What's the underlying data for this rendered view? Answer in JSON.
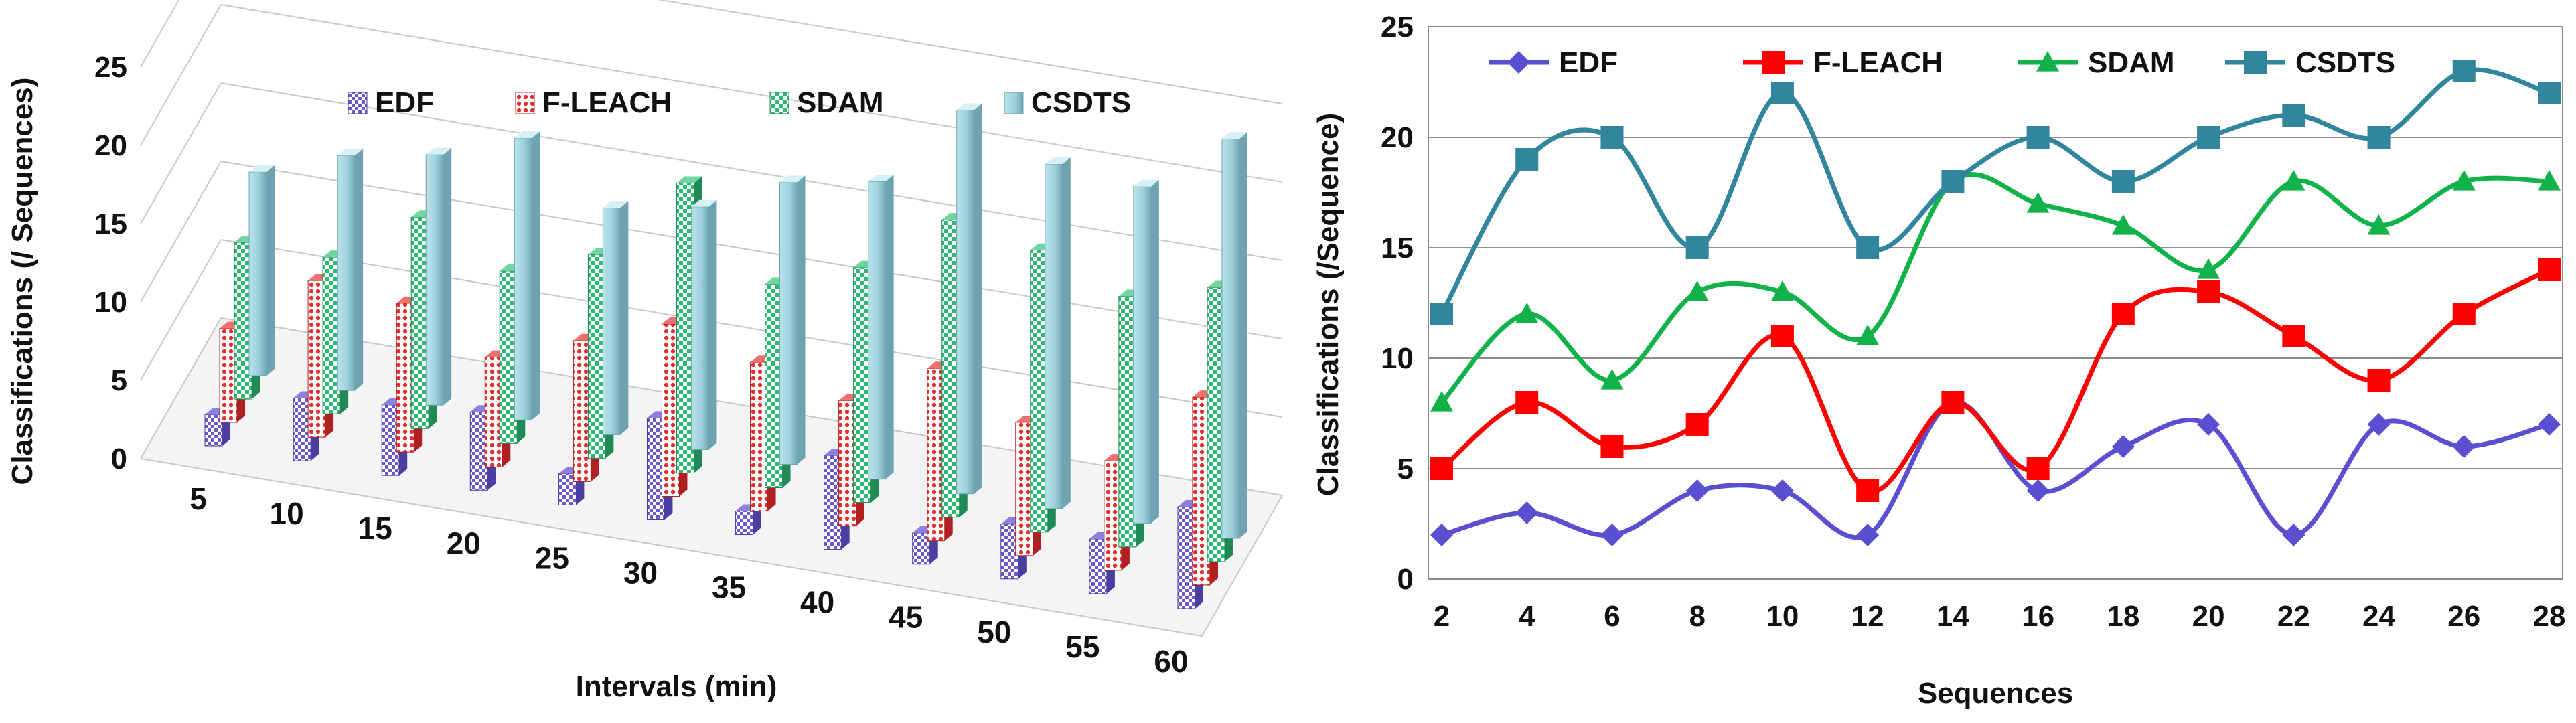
{
  "chart_data": [
    {
      "type": "bar",
      "style": "3d-clustered-column",
      "title": "",
      "xlabel": "Intervals (min)",
      "ylabel": "Classifications (/ Sequences)",
      "ylim": [
        0,
        25
      ],
      "y_ticks": [
        "0",
        "5",
        "10",
        "15",
        "20",
        "25"
      ],
      "categories": [
        "5",
        "10",
        "15",
        "20",
        "25",
        "30",
        "35",
        "40",
        "45",
        "50",
        "55",
        "60"
      ],
      "legend_position": "top",
      "series": [
        {
          "name": "EDF",
          "color": "#6a5acd",
          "values": [
            2,
            4,
            4.5,
            5,
            2,
            6.5,
            1.5,
            6,
            2,
            3.5,
            3.5,
            6.5
          ]
        },
        {
          "name": "F-LEACH",
          "color": "#e03030",
          "values": [
            6,
            10,
            9.5,
            7,
            9,
            11,
            9.5,
            8,
            11,
            8.5,
            7,
            12
          ]
        },
        {
          "name": "SDAM",
          "color": "#2eb872",
          "values": [
            10,
            10,
            13.5,
            11,
            13,
            18.5,
            13,
            15,
            19,
            18,
            16,
            17.5
          ]
        },
        {
          "name": "CSDTS",
          "color": "#9fd0dc",
          "values": [
            13,
            15,
            16,
            18,
            14.5,
            15.5,
            18,
            19,
            24.5,
            22,
            21.5,
            25.5
          ]
        }
      ]
    },
    {
      "type": "line",
      "style": "smoothed-with-markers",
      "title": "",
      "xlabel": "Sequences",
      "ylabel": "Classifications (/Sequence)",
      "ylim": [
        0,
        25
      ],
      "y_ticks": [
        "0",
        "5",
        "10",
        "15",
        "20",
        "25"
      ],
      "x": [
        2,
        4,
        6,
        8,
        10,
        12,
        14,
        16,
        18,
        20,
        22,
        24,
        26,
        28
      ],
      "legend_position": "top",
      "series": [
        {
          "name": "EDF",
          "color": "#5b4fd1",
          "marker": "diamond",
          "values": [
            2,
            3,
            2,
            4,
            4,
            2,
            8,
            4,
            6,
            7,
            2,
            7,
            6,
            7
          ]
        },
        {
          "name": "F-LEACH",
          "color": "#ff0000",
          "marker": "square",
          "values": [
            5,
            8,
            6,
            7,
            11,
            4,
            8,
            5,
            12,
            13,
            11,
            9,
            12,
            14
          ]
        },
        {
          "name": "SDAM",
          "color": "#11b24a",
          "marker": "triangle",
          "values": [
            8,
            12,
            9,
            13,
            13,
            11,
            18,
            17,
            16,
            14,
            18,
            16,
            18,
            18
          ]
        },
        {
          "name": "CSDTS",
          "color": "#31859c",
          "marker": "square",
          "values": [
            12,
            19,
            20,
            15,
            22,
            15,
            18,
            20,
            18,
            20,
            21,
            20,
            23,
            22
          ]
        }
      ]
    }
  ]
}
